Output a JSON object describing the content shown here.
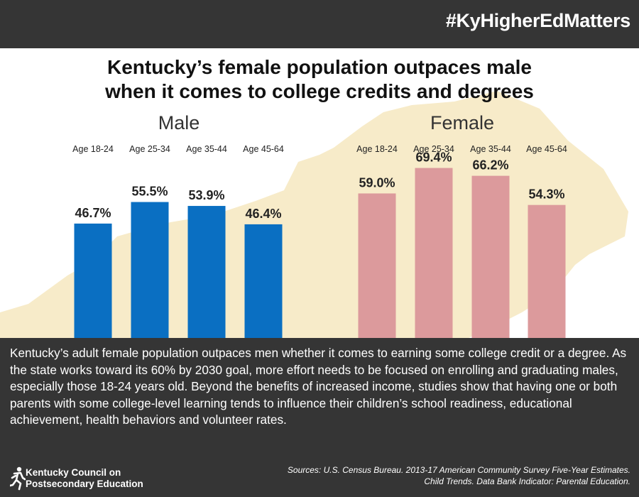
{
  "header": {
    "hashtag": "#KyHigherEdMatters"
  },
  "title": {
    "line1": "Kentucky’s female population outpaces male",
    "line2": "when it comes to college credits and degrees"
  },
  "colors": {
    "male": "#0a6fc2",
    "female": "#dc9a9c",
    "map": "#f7ebc9",
    "dark_band": "#353535"
  },
  "chart_data": [
    {
      "type": "bar",
      "title": "Male",
      "categories": [
        "Age 18-24",
        "Age 25-34",
        "Age 35-44",
        "Age 45-64"
      ],
      "values": [
        46.7,
        55.5,
        53.9,
        46.4
      ],
      "data_labels": [
        "46.7%",
        "55.5%",
        "53.9%",
        "46.4%"
      ],
      "unit": "%",
      "ylim": [
        0,
        100
      ],
      "grid": false
    },
    {
      "type": "bar",
      "title": "Female",
      "categories": [
        "Age 18-24",
        "Age 25-34",
        "Age 35-44",
        "Age 45-64"
      ],
      "values": [
        59.0,
        69.4,
        66.2,
        54.3
      ],
      "data_labels": [
        "59.0%",
        "69.4%",
        "66.2%",
        "54.3%"
      ],
      "unit": "%",
      "ylim": [
        0,
        100
      ],
      "grid": false
    }
  ],
  "description": "Kentucky’s adult female population outpaces men whether it comes to earning some college credit or a degree. As the state works toward its 60% by 2030 goal, more effort needs to be focused on enrolling and graduating males, especially those 18-24 years old. Beyond the benefits of increased income, studies show that having one or both parents with some college-level learning tends to influence their children’s school readiness, educational achievement, health behaviors and volunteer rates.",
  "footer": {
    "logo_line1": "Kentucky Council on",
    "logo_line2": "Postsecondary Education",
    "sources_line1": "Sources: U.S. Census Bureau. 2013-17 American Community Survey Five-Year Estimates.",
    "sources_line2": "Child Trends. Data Bank  Indicator: Parental Education."
  }
}
